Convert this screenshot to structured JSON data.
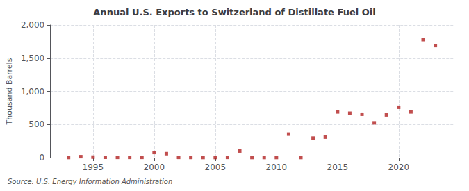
{
  "chart_data": {
    "type": "scatter",
    "title": "Annual U.S. Exports to Switzerland of Distillate Fuel Oil",
    "ylabel": "Thousand Barrels",
    "annotations": [
      "Source: U.S. Energy Information Administration"
    ],
    "x": [
      1993,
      1994,
      1995,
      1996,
      1997,
      1998,
      1999,
      2000,
      2001,
      2002,
      2003,
      2004,
      2005,
      2006,
      2007,
      2008,
      2009,
      2010,
      2011,
      2012,
      2013,
      2014,
      2015,
      2016,
      2017,
      2018,
      2019,
      2020,
      2021,
      2022,
      2023
    ],
    "values": [
      2,
      15,
      8,
      5,
      4,
      4,
      4,
      78,
      60,
      4,
      3,
      2,
      2,
      4,
      100,
      2,
      2,
      2,
      355,
      2,
      295,
      310,
      690,
      670,
      655,
      525,
      645,
      760,
      690,
      1780,
      1690
    ],
    "color": "#b22222",
    "marker": "square",
    "xlim": [
      1991.5,
      2024.5
    ],
    "xticks": [
      1995,
      2000,
      2005,
      2010,
      2015,
      2020
    ],
    "ylim": [
      0,
      2000
    ],
    "yticks": [
      0,
      500,
      {
        "value": 1000,
        "label": "1,000"
      },
      {
        "value": 1500,
        "label": "1,500"
      },
      {
        "value": 2000,
        "label": "2,000"
      }
    ],
    "grid": true
  }
}
